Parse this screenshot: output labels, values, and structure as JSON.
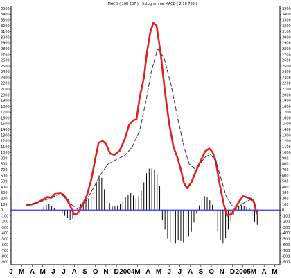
{
  "chart_data": {
    "type": "line",
    "title": "MACD ( 108 257 ), Histogramme MACD ( 2 18 785 )",
    "y_ticks": [
      3500,
      3400,
      3300,
      3200,
      3100,
      3000,
      2900,
      2800,
      2700,
      2600,
      2500,
      2400,
      2300,
      2200,
      2100,
      2000,
      1900,
      1800,
      1700,
      1600,
      1500,
      1400,
      1300,
      1200,
      1100,
      1000,
      900,
      800,
      700,
      600,
      500,
      400,
      300,
      200,
      100,
      0,
      -100,
      -200,
      -300,
      -400,
      -500,
      -600,
      -700,
      -800,
      -900
    ],
    "ylim": [
      -950,
      3550
    ],
    "x_labels": [
      "J",
      "M",
      "A",
      "M",
      "J",
      "J",
      "A",
      "S",
      "O",
      "N",
      "D",
      "2004",
      "M",
      "A",
      "M",
      "J",
      "J",
      "A",
      "S",
      "O",
      "N",
      "D",
      "2005",
      "M",
      "A",
      "M"
    ],
    "xlim": [
      0,
      25.5
    ],
    "grid": false,
    "colors": {
      "macd": "#e02020",
      "signal": "#333333",
      "histogram": "#000000",
      "zero_line": "#3333ff"
    },
    "series": [
      {
        "style": "solid",
        "color": "#e02020",
        "points": [
          [
            1.5,
            80
          ],
          [
            2,
            100
          ],
          [
            2.5,
            130
          ],
          [
            3,
            180
          ],
          [
            3.5,
            230
          ],
          [
            3.8,
            210
          ],
          [
            4.2,
            290
          ],
          [
            4.7,
            300
          ],
          [
            5,
            260
          ],
          [
            5.5,
            110
          ],
          [
            6,
            -80
          ],
          [
            6.3,
            -60
          ],
          [
            6.8,
            100
          ],
          [
            7.2,
            260
          ],
          [
            7.6,
            520
          ],
          [
            8,
            900
          ],
          [
            8.3,
            1170
          ],
          [
            8.7,
            1200
          ],
          [
            9,
            1150
          ],
          [
            9.4,
            980
          ],
          [
            9.8,
            960
          ],
          [
            10.3,
            1030
          ],
          [
            10.8,
            1240
          ],
          [
            11.2,
            1480
          ],
          [
            11.6,
            1560
          ],
          [
            11.9,
            1580
          ],
          [
            12.2,
            1950
          ],
          [
            12.6,
            2300
          ],
          [
            12.9,
            2750
          ],
          [
            13.2,
            3080
          ],
          [
            13.5,
            3250
          ],
          [
            13.8,
            3200
          ],
          [
            14.2,
            2700
          ],
          [
            14.6,
            2050
          ],
          [
            15,
            1500
          ],
          [
            15.4,
            1100
          ],
          [
            15.8,
            900
          ],
          [
            16.1,
            700
          ],
          [
            16.4,
            470
          ],
          [
            16.7,
            380
          ],
          [
            17.1,
            480
          ],
          [
            17.5,
            660
          ],
          [
            18,
            860
          ],
          [
            18.4,
            1020
          ],
          [
            18.8,
            1070
          ],
          [
            19.1,
            1010
          ],
          [
            19.4,
            860
          ],
          [
            19.8,
            430
          ],
          [
            20.2,
            80
          ],
          [
            20.5,
            -100
          ],
          [
            20.9,
            -70
          ],
          [
            21.3,
            40
          ],
          [
            21.7,
            170
          ],
          [
            22,
            240
          ],
          [
            22.4,
            220
          ],
          [
            22.8,
            190
          ],
          [
            23,
            160
          ],
          [
            23.3,
            -60
          ]
        ]
      },
      {
        "style": "dashed",
        "color": "#333333",
        "points": [
          [
            1.5,
            90
          ],
          [
            2.5,
            130
          ],
          [
            3.5,
            190
          ],
          [
            4.5,
            270
          ],
          [
            5.2,
            230
          ],
          [
            5.8,
            80
          ],
          [
            6.3,
            20
          ],
          [
            7,
            120
          ],
          [
            7.8,
            380
          ],
          [
            8.5,
            620
          ],
          [
            9.2,
            800
          ],
          [
            10,
            880
          ],
          [
            10.8,
            950
          ],
          [
            11.5,
            1100
          ],
          [
            12.2,
            1380
          ],
          [
            12.8,
            1900
          ],
          [
            13.3,
            2400
          ],
          [
            13.9,
            2800
          ],
          [
            14.5,
            2650
          ],
          [
            15.2,
            2150
          ],
          [
            15.8,
            1600
          ],
          [
            16.4,
            1100
          ],
          [
            16.9,
            800
          ],
          [
            17.4,
            720
          ],
          [
            17.9,
            800
          ],
          [
            18.4,
            920
          ],
          [
            18.9,
            970
          ],
          [
            19.4,
            860
          ],
          [
            19.9,
            560
          ],
          [
            20.4,
            240
          ],
          [
            21,
            70
          ],
          [
            21.6,
            60
          ],
          [
            22.2,
            140
          ],
          [
            22.7,
            180
          ],
          [
            23.2,
            100
          ]
        ]
      }
    ],
    "histogram": [
      [
        3.1,
        60
      ],
      [
        3.35,
        90
      ],
      [
        3.6,
        110
      ],
      [
        3.85,
        70
      ],
      [
        4.1,
        40
      ],
      [
        4.6,
        -20
      ],
      [
        4.85,
        -60
      ],
      [
        5.1,
        -100
      ],
      [
        5.35,
        -140
      ],
      [
        5.6,
        -170
      ],
      [
        5.85,
        -150
      ],
      [
        6.6,
        100
      ],
      [
        6.85,
        140
      ],
      [
        7.1,
        180
      ],
      [
        7.35,
        200
      ],
      [
        7.6,
        240
      ],
      [
        7.85,
        320
      ],
      [
        8.1,
        480
      ],
      [
        8.35,
        600
      ],
      [
        8.6,
        560
      ],
      [
        8.85,
        360
      ],
      [
        9.1,
        220
      ],
      [
        9.35,
        120
      ],
      [
        9.6,
        60
      ],
      [
        9.85,
        70
      ],
      [
        10.1,
        80
      ],
      [
        10.35,
        100
      ],
      [
        10.6,
        160
      ],
      [
        10.85,
        220
      ],
      [
        11.1,
        260
      ],
      [
        11.35,
        300
      ],
      [
        11.6,
        250
      ],
      [
        11.85,
        200
      ],
      [
        12.1,
        240
      ],
      [
        12.35,
        330
      ],
      [
        12.6,
        480
      ],
      [
        12.85,
        640
      ],
      [
        13.1,
        720
      ],
      [
        13.35,
        720
      ],
      [
        13.6,
        700
      ],
      [
        13.85,
        620
      ],
      [
        14.1,
        420
      ],
      [
        14.35,
        -180
      ],
      [
        14.6,
        -340
      ],
      [
        14.85,
        -500
      ],
      [
        15.1,
        -560
      ],
      [
        15.35,
        -600
      ],
      [
        15.6,
        -580
      ],
      [
        15.85,
        -520
      ],
      [
        16.1,
        -540
      ],
      [
        16.35,
        -560
      ],
      [
        16.6,
        -500
      ],
      [
        16.85,
        -460
      ],
      [
        17.1,
        -380
      ],
      [
        17.35,
        -220
      ],
      [
        17.6,
        -60
      ],
      [
        17.85,
        80
      ],
      [
        18.1,
        180
      ],
      [
        18.35,
        240
      ],
      [
        18.6,
        230
      ],
      [
        18.85,
        170
      ],
      [
        19.1,
        90
      ],
      [
        19.35,
        -100
      ],
      [
        19.6,
        -360
      ],
      [
        19.85,
        -520
      ],
      [
        20.1,
        -580
      ],
      [
        20.35,
        -480
      ],
      [
        20.6,
        -340
      ],
      [
        20.85,
        -200
      ],
      [
        21.1,
        -80
      ],
      [
        21.35,
        30
      ],
      [
        21.6,
        60
      ],
      [
        21.85,
        80
      ],
      [
        22.1,
        70
      ],
      [
        22.35,
        50
      ],
      [
        22.6,
        30
      ],
      [
        22.85,
        -100
      ],
      [
        23.1,
        -200
      ],
      [
        23.35,
        -260
      ]
    ]
  }
}
